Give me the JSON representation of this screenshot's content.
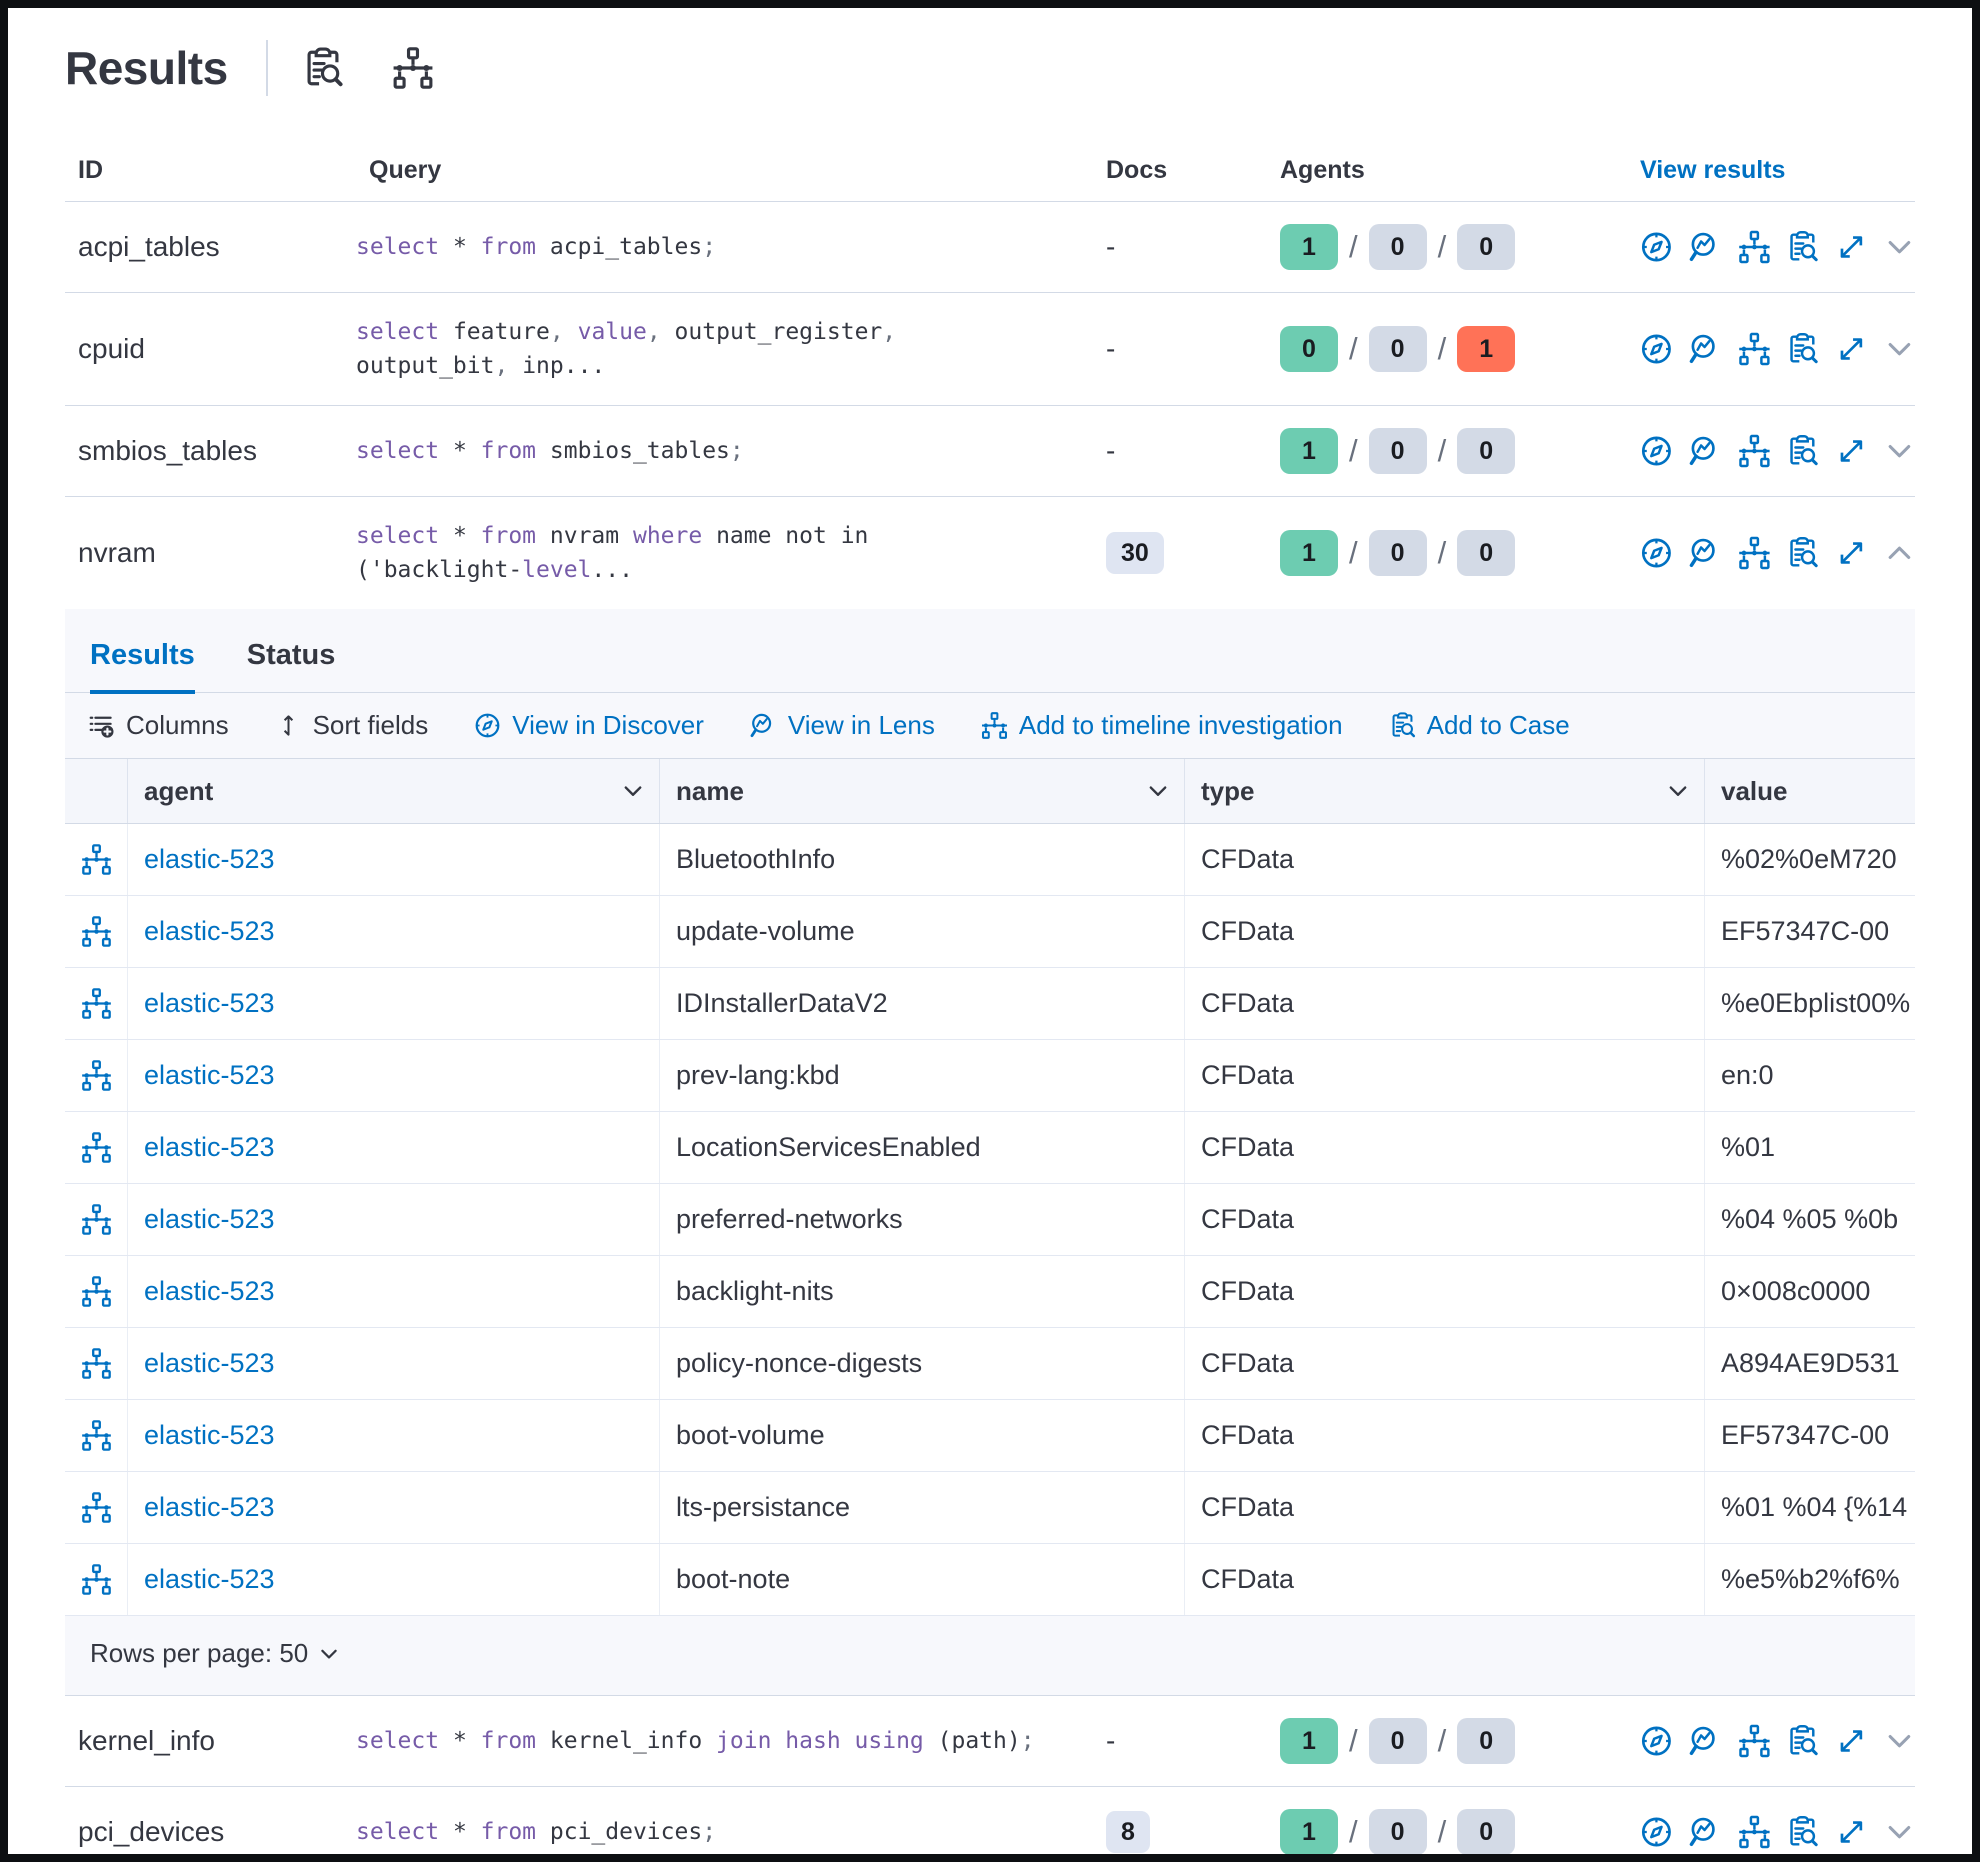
{
  "header": {
    "title": "Results",
    "icons": [
      "inspect-icon",
      "tree-icon"
    ]
  },
  "colors": {
    "accent_blue": "#0071c2",
    "keyword_purple": "#765ba8",
    "success_badge": "#6dccb1",
    "neutral_badge": "#d3dae6",
    "danger_badge": "#ff7257",
    "docs_badge": "#dfe5f2",
    "panel_bg": "#f7f8fc"
  },
  "queries_table": {
    "columns": [
      "ID",
      "Query",
      "Docs",
      "Agents",
      "View results"
    ],
    "action_icons": [
      "discover",
      "lens",
      "timeline",
      "case",
      "expand"
    ],
    "rows": [
      {
        "id": "acpi_tables",
        "docs": "-",
        "docs_badge": false,
        "agents": [
          "1",
          "0",
          "0"
        ],
        "failed": false,
        "expanded": false,
        "query": [
          [
            [
              "select",
              "k"
            ],
            [
              " * ",
              ""
            ],
            [
              "from",
              "k"
            ],
            [
              " acpi_tables",
              ""
            ],
            [
              ";",
              "p"
            ]
          ]
        ]
      },
      {
        "id": "cpuid",
        "docs": "-",
        "docs_badge": false,
        "agents": [
          "0",
          "0",
          "1"
        ],
        "failed": true,
        "expanded": false,
        "query": [
          [
            [
              "select",
              "k"
            ],
            [
              " feature",
              ""
            ],
            [
              ",",
              "p"
            ],
            [
              " ",
              ""
            ],
            [
              "value",
              "k"
            ],
            [
              ",",
              "p"
            ],
            [
              " output_register",
              ""
            ],
            [
              ",",
              "p"
            ]
          ],
          [
            [
              "output_bit",
              ""
            ],
            [
              ",",
              "p"
            ],
            [
              " inp...",
              ""
            ]
          ]
        ]
      },
      {
        "id": "smbios_tables",
        "docs": "-",
        "docs_badge": false,
        "agents": [
          "1",
          "0",
          "0"
        ],
        "failed": false,
        "expanded": false,
        "query": [
          [
            [
              "select",
              "k"
            ],
            [
              " * ",
              ""
            ],
            [
              "from",
              "k"
            ],
            [
              " smbios_tables",
              ""
            ],
            [
              ";",
              "p"
            ]
          ]
        ]
      },
      {
        "id": "nvram",
        "docs": "30",
        "docs_badge": true,
        "agents": [
          "1",
          "0",
          "0"
        ],
        "failed": false,
        "expanded": true,
        "query": [
          [
            [
              "select",
              "k"
            ],
            [
              " * ",
              ""
            ],
            [
              "from",
              "k"
            ],
            [
              " nvram ",
              ""
            ],
            [
              "where",
              "k"
            ],
            [
              " name not in",
              ""
            ]
          ],
          [
            [
              "('backlight-",
              ""
            ],
            [
              "level",
              "k"
            ],
            [
              "...",
              ""
            ]
          ]
        ]
      },
      {
        "id": "kernel_info",
        "docs": "-",
        "docs_badge": false,
        "agents": [
          "1",
          "0",
          "0"
        ],
        "failed": false,
        "expanded": false,
        "query": [
          [
            [
              "select",
              "k"
            ],
            [
              " * ",
              ""
            ],
            [
              "from",
              "k"
            ],
            [
              " kernel_info ",
              ""
            ],
            [
              "join",
              "k"
            ],
            [
              " ",
              ""
            ],
            [
              "hash",
              "k"
            ],
            [
              " ",
              ""
            ],
            [
              "using",
              "k"
            ],
            [
              " (path)",
              ""
            ],
            [
              ";",
              "p"
            ]
          ]
        ]
      },
      {
        "id": "pci_devices",
        "docs": "8",
        "docs_badge": true,
        "agents": [
          "1",
          "0",
          "0"
        ],
        "failed": false,
        "expanded": false,
        "query": [
          [
            [
              "select",
              "k"
            ],
            [
              " * ",
              ""
            ],
            [
              "from",
              "k"
            ],
            [
              " pci_devices",
              ""
            ],
            [
              ";",
              "p"
            ]
          ]
        ]
      }
    ]
  },
  "results_panel": {
    "tabs": [
      {
        "label": "Results",
        "active": true
      },
      {
        "label": "Status",
        "active": false
      }
    ],
    "toolbar": [
      {
        "label": "Columns",
        "icon": "columns",
        "style": "dark"
      },
      {
        "label": "Sort fields",
        "icon": "sort",
        "style": "dark"
      },
      {
        "label": "View in Discover",
        "icon": "discover",
        "style": "link"
      },
      {
        "label": "View in Lens",
        "icon": "lens",
        "style": "link"
      },
      {
        "label": "Add to timeline investigation",
        "icon": "timeline",
        "style": "link"
      },
      {
        "label": "Add to Case",
        "icon": "case",
        "style": "link"
      }
    ],
    "grid": {
      "columns": [
        {
          "label": "agent",
          "sortable": true
        },
        {
          "label": "name",
          "sortable": true
        },
        {
          "label": "type",
          "sortable": true
        },
        {
          "label": "value",
          "sortable": false
        }
      ],
      "rows": [
        {
          "agent": "elastic-523",
          "name": "BluetoothInfo",
          "type": "CFData",
          "value": "%02%0eM720"
        },
        {
          "agent": "elastic-523",
          "name": "update-volume",
          "type": "CFData",
          "value": "EF57347C-00"
        },
        {
          "agent": "elastic-523",
          "name": "IDInstallerDataV2",
          "type": "CFData",
          "value": "%e0Ebplist00%"
        },
        {
          "agent": "elastic-523",
          "name": "prev-lang:kbd",
          "type": "CFData",
          "value": "en:0"
        },
        {
          "agent": "elastic-523",
          "name": "LocationServicesEnabled",
          "type": "CFData",
          "value": "%01"
        },
        {
          "agent": "elastic-523",
          "name": "preferred-networks",
          "type": "CFData",
          "value": "%04 %05 %0b"
        },
        {
          "agent": "elastic-523",
          "name": "backlight-nits",
          "type": "CFData",
          "value": "0×008c0000"
        },
        {
          "agent": "elastic-523",
          "name": "policy-nonce-digests",
          "type": "CFData",
          "value": "A894AE9D531"
        },
        {
          "agent": "elastic-523",
          "name": "boot-volume",
          "type": "CFData",
          "value": "EF57347C-00"
        },
        {
          "agent": "elastic-523",
          "name": "lts-persistance",
          "type": "CFData",
          "value": "%01 %04 {%14"
        },
        {
          "agent": "elastic-523",
          "name": "boot-note",
          "type": "CFData",
          "value": "%e5%b2%f6%"
        }
      ]
    },
    "rows_per_page": "Rows per page: 50"
  }
}
